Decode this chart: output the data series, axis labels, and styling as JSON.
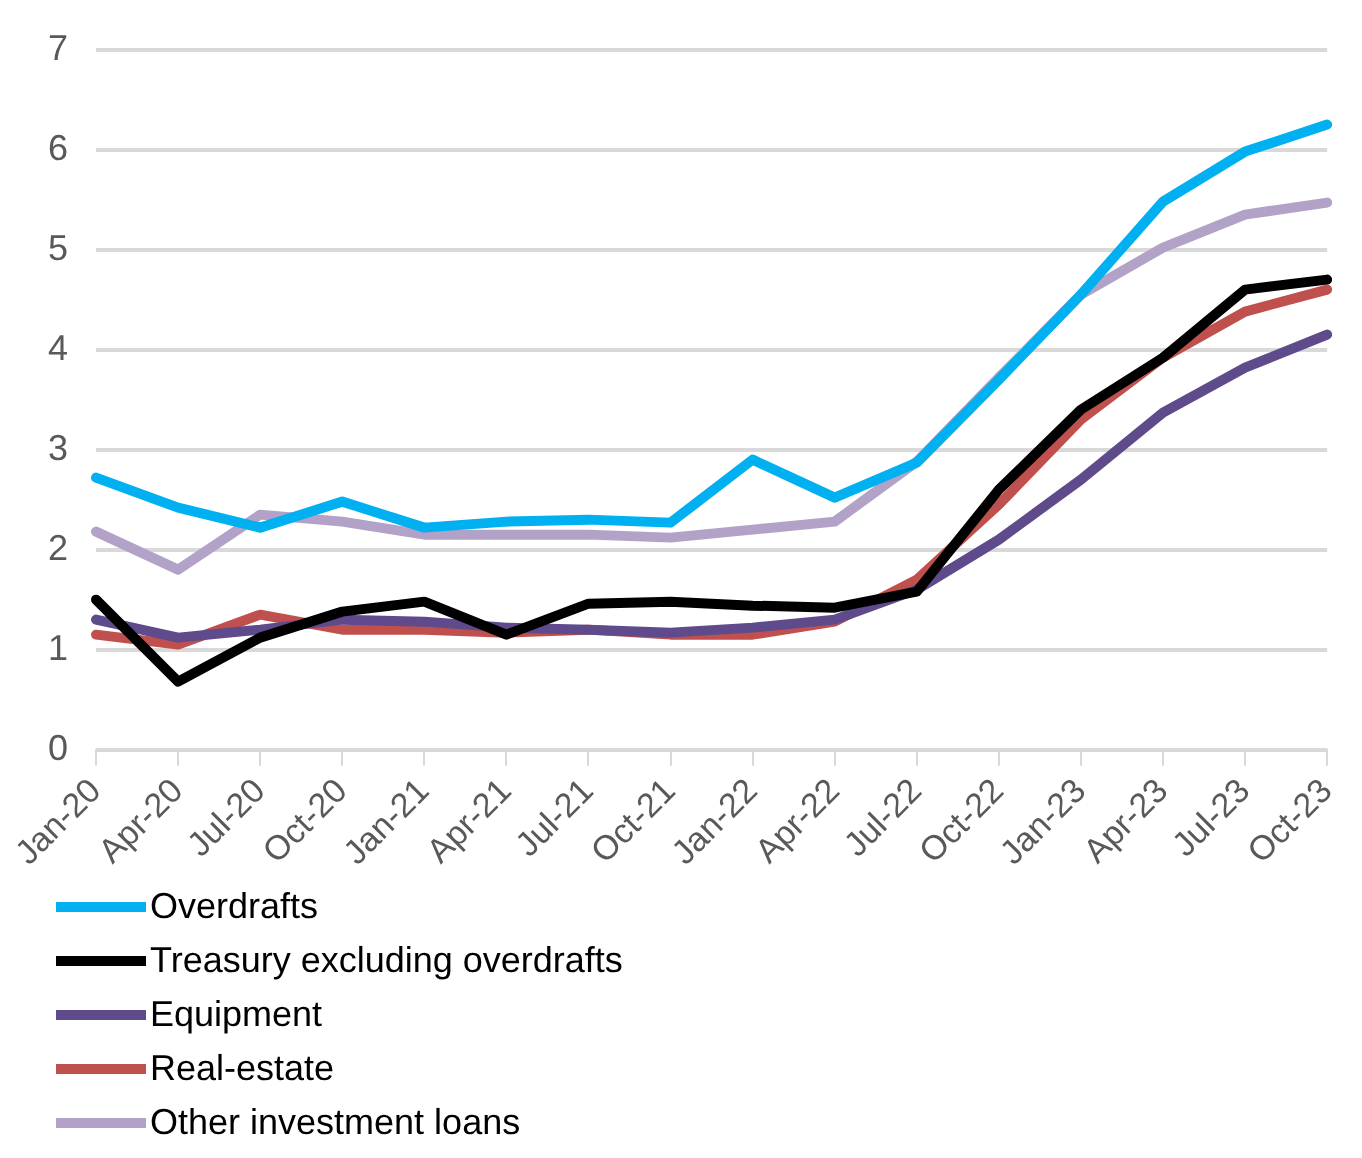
{
  "chart_data": {
    "type": "line",
    "categories": [
      "Jan-20",
      "Apr-20",
      "Jul-20",
      "Oct-20",
      "Jan-21",
      "Apr-21",
      "Jul-21",
      "Oct-21",
      "Jan-22",
      "Apr-22",
      "Jul-22",
      "Oct-22",
      "Jan-23",
      "Apr-23",
      "Jul-23",
      "Oct-23"
    ],
    "series": [
      {
        "name": "Overdrafts",
        "color": "#00b0f0",
        "values": [
          2.72,
          2.42,
          2.22,
          2.48,
          2.22,
          2.28,
          2.3,
          2.27,
          2.9,
          2.52,
          2.87,
          3.7,
          4.55,
          5.48,
          5.98,
          6.25
        ]
      },
      {
        "name": "Treasury excluding overdrafts",
        "color": "#000000",
        "values": [
          1.5,
          0.68,
          1.12,
          1.38,
          1.48,
          1.15,
          1.46,
          1.48,
          1.44,
          1.42,
          1.58,
          2.6,
          3.4,
          3.92,
          4.6,
          4.7
        ]
      },
      {
        "name": "Equipment",
        "color": "#5f4b8b",
        "values": [
          1.3,
          1.12,
          1.2,
          1.3,
          1.28,
          1.22,
          1.2,
          1.17,
          1.22,
          1.3,
          1.6,
          2.1,
          2.7,
          3.37,
          3.82,
          4.15
        ]
      },
      {
        "name": "Real-estate",
        "color": "#c0504d",
        "values": [
          1.15,
          1.05,
          1.35,
          1.2,
          1.2,
          1.17,
          1.2,
          1.15,
          1.15,
          1.28,
          1.7,
          2.45,
          3.3,
          3.92,
          4.38,
          4.6
        ]
      },
      {
        "name": "Other investment loans",
        "color": "#b3a2c7",
        "values": [
          2.18,
          1.8,
          2.35,
          2.28,
          2.15,
          2.15,
          2.15,
          2.12,
          2.2,
          2.28,
          2.88,
          3.72,
          4.55,
          5.02,
          5.35,
          5.47
        ]
      }
    ],
    "ylim": [
      0,
      7
    ],
    "yticks": [
      0,
      1,
      2,
      3,
      4,
      5,
      6,
      7
    ],
    "grid": "y",
    "legend": "bottom",
    "marker": "none",
    "line_style": "solid"
  }
}
